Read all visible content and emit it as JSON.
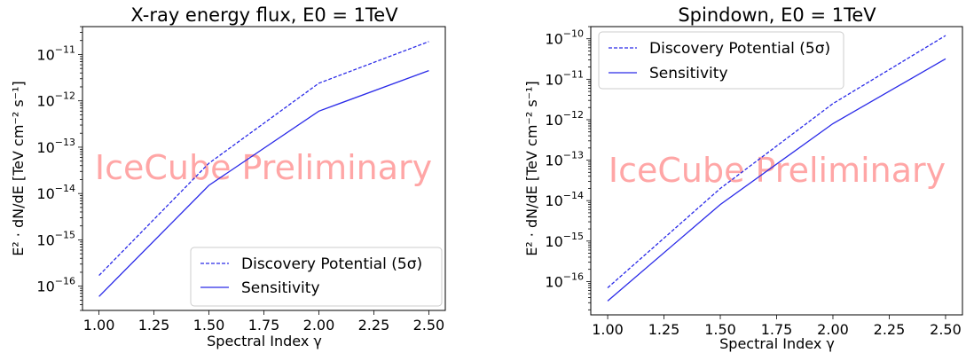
{
  "chart_data": [
    {
      "type": "line",
      "title": "X-ray energy flux, E0 = 1TeV",
      "xlabel": "Spectral Index γ",
      "ylabel": "E² · dN/dE [TeV cm⁻² s⁻¹]",
      "x": [
        1.0,
        1.5,
        2.0,
        2.5
      ],
      "xticks": [
        "1.00",
        "1.25",
        "1.50",
        "1.75",
        "2.00",
        "2.25",
        "2.50"
      ],
      "yscale": "log",
      "ylim": [
        3e-17,
        4e-11
      ],
      "yticks": [
        "10",
        "10",
        "10",
        "10",
        "10",
        "10"
      ],
      "ytick_exponents": [
        "−16",
        "−15",
        "−14",
        "−13",
        "−12",
        "−11"
      ],
      "series": [
        {
          "name": "Discovery Potential (5σ)",
          "style": "dashed",
          "color": "#2a2ae8",
          "values": [
            1.7e-16,
            4.5e-14,
            2.4e-12,
            1.9e-11
          ]
        },
        {
          "name": "Sensitivity",
          "style": "solid",
          "color": "#2a2ae8",
          "values": [
            6e-17,
            1.5e-14,
            6e-13,
            4.5e-12
          ]
        }
      ],
      "legend_loc": "lower right",
      "grid": false,
      "annotation": "IceCube Preliminary"
    },
    {
      "type": "line",
      "title": "Spindown, E0 = 1TeV",
      "xlabel": "Spectral Index γ",
      "ylabel": "E² · dN/dE [TeV cm⁻² s⁻¹]",
      "x": [
        1.0,
        1.5,
        2.0,
        2.5
      ],
      "xticks": [
        "1.00",
        "1.25",
        "1.50",
        "1.75",
        "2.00",
        "2.25",
        "2.50"
      ],
      "yscale": "log",
      "ylim": [
        1.5e-17,
        2e-10
      ],
      "yticks": [
        "10",
        "10",
        "10",
        "10",
        "10",
        "10",
        "10"
      ],
      "ytick_exponents": [
        "−16",
        "−15",
        "−14",
        "−13",
        "−12",
        "−11",
        "−10"
      ],
      "series": [
        {
          "name": "Discovery Potential (5σ)",
          "style": "dashed",
          "color": "#2a2ae8",
          "values": [
            7e-17,
            2e-14,
            2.5e-12,
            1.2e-10
          ]
        },
        {
          "name": "Sensitivity",
          "style": "solid",
          "color": "#2a2ae8",
          "values": [
            3.3e-17,
            8e-15,
            8e-13,
            3.2e-11
          ]
        }
      ],
      "legend_loc": "upper left",
      "grid": false,
      "annotation": "IceCube Preliminary"
    }
  ]
}
